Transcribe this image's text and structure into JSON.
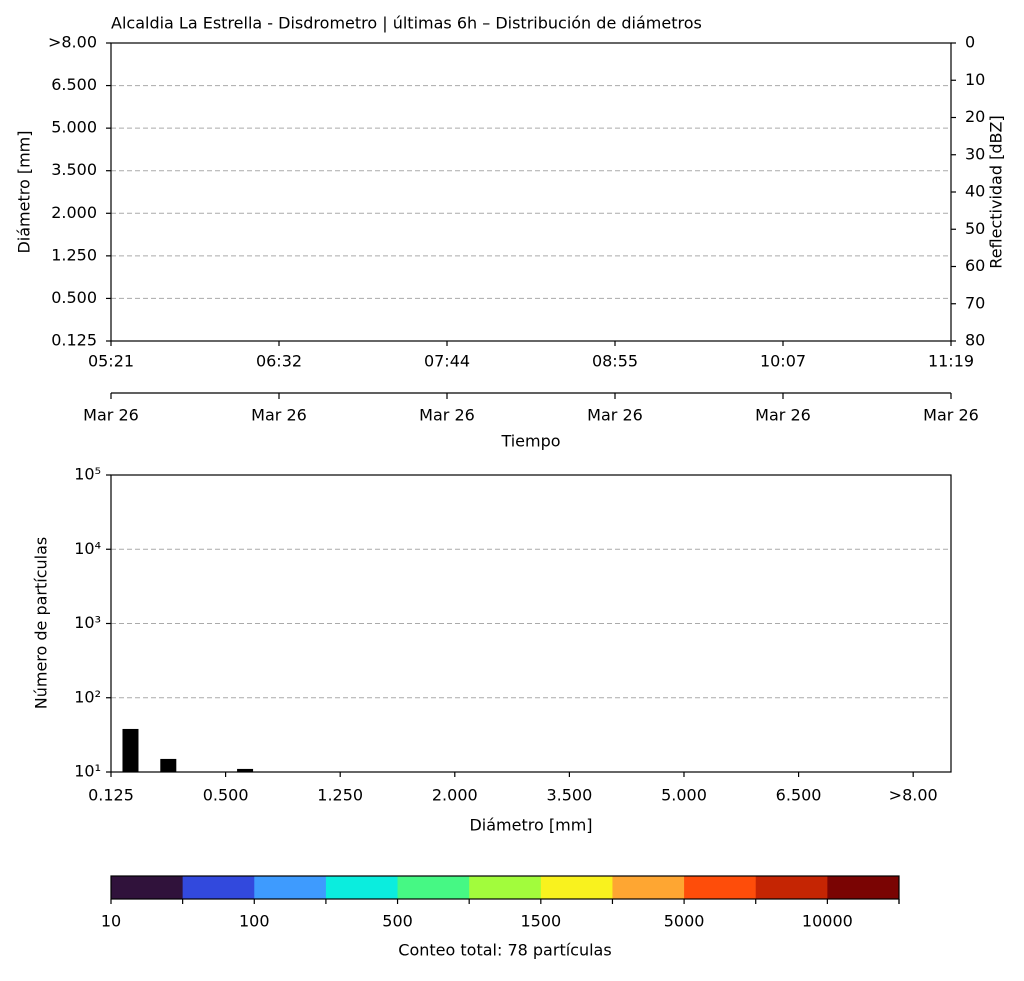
{
  "chart_data": [
    {
      "type": "heatmap",
      "title": "Alcaldia La Estrella - Disdrometro | últimas 6h – Distribución de diámetros",
      "ylabel": "Diámetro [mm]",
      "y2label": "Reflectividad [dBZ]",
      "xlabel": "Tiempo",
      "categories": [
        "05:21",
        "06:32",
        "07:44",
        "08:55",
        "10:07",
        "11:19"
      ],
      "dates": [
        "Mar 26",
        "Mar 26",
        "Mar 26",
        "Mar 26",
        "Mar 26",
        "Mar 26"
      ],
      "y_categories": [
        "0.125",
        "0.500",
        "1.250",
        "2.000",
        "3.500",
        "5.000",
        "6.500",
        ">8.00"
      ],
      "y2lim": [
        80,
        0
      ],
      "y2ticks": [
        0,
        10,
        20,
        30,
        40,
        50,
        60,
        70,
        80
      ],
      "grid": true
    },
    {
      "type": "bar",
      "xlabel": "Diámetro [mm]",
      "ylabel": "Número de partículas",
      "log_y": true,
      "xlim": [
        0,
        7.33
      ],
      "xticks": [
        {
          "value": 0,
          "label": "0.125"
        },
        {
          "value": 1,
          "label": "0.500"
        },
        {
          "value": 2,
          "label": "1.250"
        },
        {
          "value": 3,
          "label": "2.000"
        },
        {
          "value": 4,
          "label": "3.500"
        },
        {
          "value": 5,
          "label": "5.000"
        },
        {
          "value": 6,
          "label": "6.500"
        },
        {
          "value": 7,
          "label": ">8.00"
        }
      ],
      "x": [
        0.17,
        0.5,
        1.17
      ],
      "values": [
        38,
        15,
        11
      ],
      "color": "#000000",
      "ylim": [
        10,
        100000
      ],
      "yticks": [
        {
          "value": 10,
          "label": "10¹"
        },
        {
          "value": 100,
          "label": "10²"
        },
        {
          "value": 1000,
          "label": "10³"
        },
        {
          "value": 10000,
          "label": "10⁴"
        },
        {
          "value": 100000,
          "label": "10⁵"
        }
      ],
      "grid": true
    },
    {
      "type": "colorbar",
      "label": "Conteo total: 78 partículas",
      "boundaries": [
        10,
        null,
        100,
        null,
        500,
        null,
        1500,
        null,
        5000,
        null,
        10000,
        null
      ],
      "colors": [
        "#30123b",
        "#3249dd",
        "#3e9bfe",
        "#0bedde",
        "#46f884",
        "#a2fc3c",
        "#f9f21e",
        "#fea632",
        "#fe4d0a",
        "#c52503",
        "#7a0403"
      ]
    }
  ]
}
